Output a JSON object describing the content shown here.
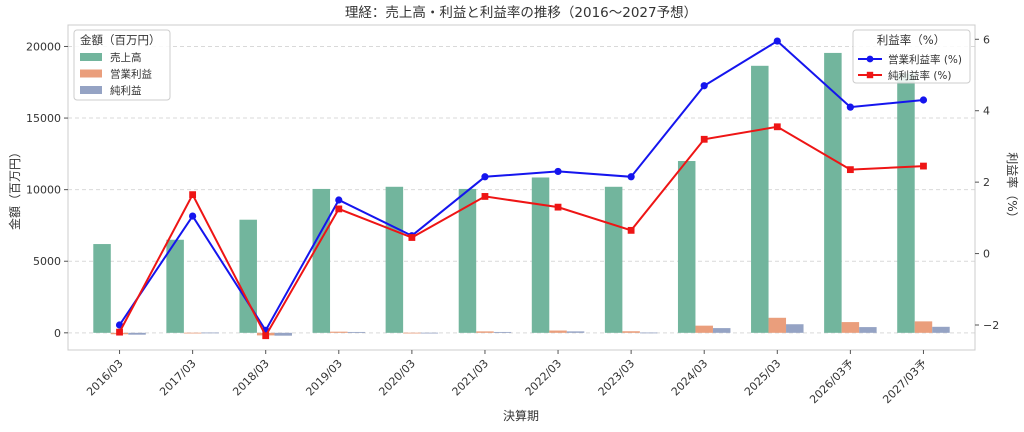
{
  "chart_data": {
    "type": "bar",
    "title": "理経：売上高・利益と利益率の推移（2016〜2027予想）",
    "xlabel": "決算期",
    "ylabel_left": "金額（百万円）",
    "ylabel_right": "利益率（%）",
    "categories": [
      "2016/03",
      "2017/03",
      "2018/03",
      "2019/03",
      "2020/03",
      "2021/03",
      "2022/03",
      "2023/03",
      "2024/03",
      "2025/03",
      "2026/03予",
      "2027/03予"
    ],
    "ylim_left": [
      -1200,
      21500
    ],
    "yticks_left": [
      0,
      5000,
      10000,
      15000,
      20000
    ],
    "ylim_right": [
      -2.7,
      6.4
    ],
    "yticks_right": [
      -2,
      0,
      2,
      4,
      6
    ],
    "grid": true,
    "series": [
      {
        "name": "売上高",
        "kind": "bar",
        "axis": "left",
        "color": "#72b59d",
        "values": [
          6200,
          6500,
          7900,
          10050,
          10200,
          10050,
          10850,
          10200,
          12000,
          18650,
          19550,
          18100
        ]
      },
      {
        "name": "営業利益",
        "kind": "bar",
        "axis": "left",
        "color": "#ea9e7c",
        "values": [
          -100,
          10,
          -180,
          80,
          10,
          100,
          160,
          110,
          500,
          1050,
          750,
          800
        ]
      },
      {
        "name": "純利益",
        "kind": "bar",
        "axis": "left",
        "color": "#95a3c4",
        "values": [
          -130,
          20,
          -200,
          60,
          10,
          60,
          100,
          20,
          330,
          600,
          400,
          420
        ]
      },
      {
        "name": "営業利益率 (%)",
        "kind": "line",
        "axis": "right",
        "color": "#1515ee",
        "marker": "circle",
        "values": [
          -2.0,
          1.05,
          -2.15,
          1.5,
          0.5,
          2.15,
          2.3,
          2.15,
          4.7,
          5.95,
          4.1,
          4.3
        ]
      },
      {
        "name": "純利益率 (%)",
        "kind": "line",
        "axis": "right",
        "color": "#ee1515",
        "marker": "square",
        "values": [
          -2.2,
          1.65,
          -2.3,
          1.25,
          0.45,
          1.6,
          1.3,
          0.65,
          3.2,
          3.55,
          2.35,
          2.45
        ]
      }
    ],
    "legend_left": {
      "title": "金額（百万円）",
      "placement": "top-left",
      "items": [
        "売上高",
        "営業利益",
        "純利益"
      ]
    },
    "legend_right": {
      "title": "利益率（%）",
      "placement": "top-right",
      "items": [
        "営業利益率 (%)",
        "純利益率 (%)"
      ]
    }
  }
}
